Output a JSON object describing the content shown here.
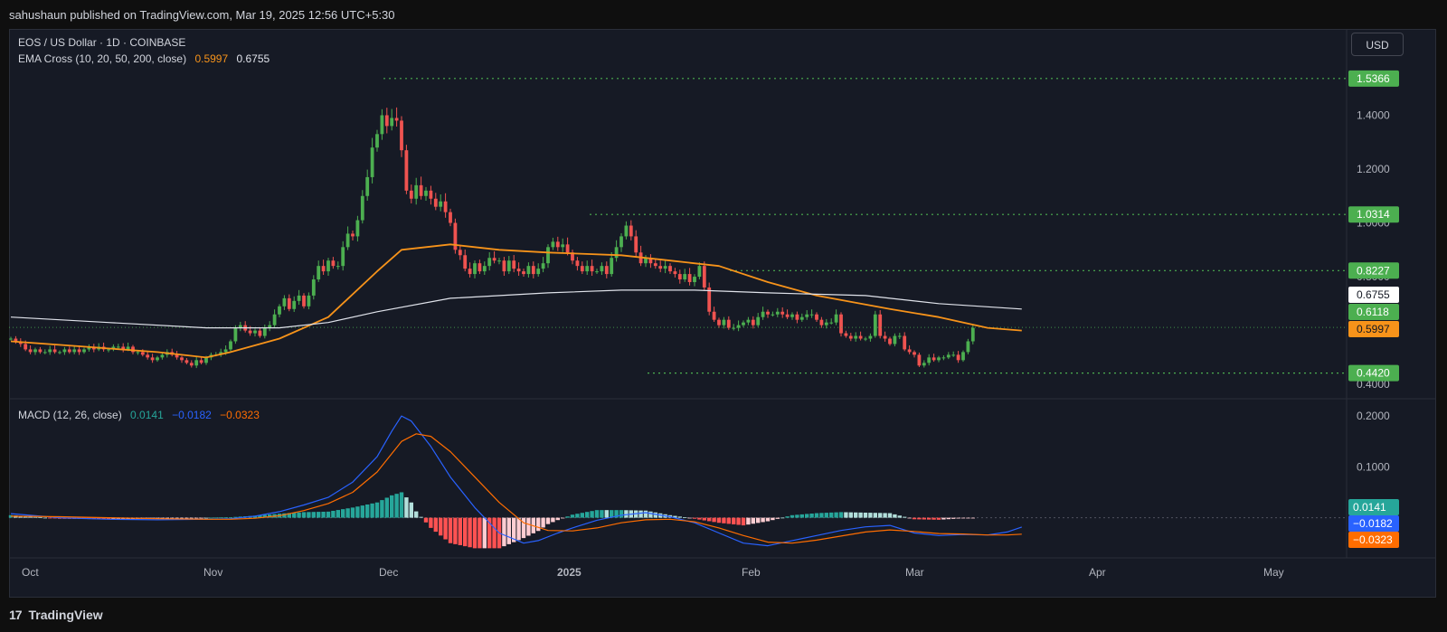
{
  "header": {
    "publisher_line": "sahushaun published on TradingView.com, Mar 19, 2025 12:56 UTC+5:30"
  },
  "legend": {
    "symbol": "EOS / US Dollar · 1D · COINBASE",
    "ema_label": "EMA Cross (10, 20, 50, 200, close)",
    "ema_fast_value": "0.5997",
    "ema_slow_value": "0.6755",
    "macd_label": "MACD (12, 26, close)",
    "macd_hist_value": "0.0141",
    "macd_line_value": "−0.0182",
    "macd_signal_value": "−0.0323"
  },
  "currency_button": "USD",
  "footer": {
    "brand": "TradingView",
    "logo_mark": "17"
  },
  "colors": {
    "background": "#161a25",
    "up": "#26a69a",
    "candle_up": "#4caf50",
    "candle_down": "#ef5350",
    "ema_fast": "#f7931a",
    "ema_slow": "#e0e3eb",
    "level": "#4caf50",
    "macd": "#2962ff",
    "signal": "#ff6d00",
    "hist_up_strong": "#26a69a",
    "hist_up_weak": "#b2dfdb",
    "hist_down_strong": "#ff5252",
    "hist_down_weak": "#ffcdd2"
  },
  "chart_data": [
    {
      "type": "candlestick",
      "x_axis": {
        "ticks": [
          "Oct",
          "Nov",
          "Dec",
          "2025",
          "Feb",
          "Mar",
          "Apr",
          "May"
        ]
      },
      "price_axis": {
        "ticks": [
          "1.4000",
          "1.2000",
          "1.0000",
          "0.8000",
          "0.6000",
          "0.4000"
        ],
        "tick_values": [
          1.4,
          1.2,
          1.0,
          0.8,
          0.6,
          0.4
        ],
        "range": [
          0.35,
          1.62
        ]
      },
      "horizontal_levels": [
        {
          "value": 1.5366,
          "label": "1.5366"
        },
        {
          "value": 1.0314,
          "label": "1.0314"
        },
        {
          "value": 0.8227,
          "label": "0.8227"
        },
        {
          "value": 0.442,
          "label": "0.4420"
        }
      ],
      "price_labels": [
        {
          "value": 0.6755,
          "label": "0.6755",
          "kind": "ema_slow"
        },
        {
          "value": 0.6118,
          "label": "0.6118",
          "kind": "last"
        },
        {
          "value": 0.5997,
          "label": "0.5997",
          "kind": "ema_fast"
        }
      ],
      "closes": [
        0.57,
        0.56,
        0.55,
        0.53,
        0.52,
        0.53,
        0.52,
        0.52,
        0.53,
        0.52,
        0.52,
        0.53,
        0.52,
        0.53,
        0.52,
        0.53,
        0.54,
        0.53,
        0.54,
        0.53,
        0.53,
        0.54,
        0.54,
        0.53,
        0.54,
        0.52,
        0.52,
        0.51,
        0.5,
        0.49,
        0.5,
        0.51,
        0.52,
        0.51,
        0.5,
        0.49,
        0.48,
        0.47,
        0.49,
        0.48,
        0.5,
        0.51,
        0.51,
        0.52,
        0.53,
        0.56,
        0.61,
        0.62,
        0.6,
        0.59,
        0.6,
        0.58,
        0.61,
        0.62,
        0.66,
        0.69,
        0.72,
        0.68,
        0.71,
        0.73,
        0.69,
        0.73,
        0.79,
        0.84,
        0.82,
        0.86,
        0.84,
        0.84,
        0.91,
        0.96,
        0.95,
        1.01,
        1.1,
        1.17,
        1.28,
        1.33,
        1.4,
        1.36,
        1.39,
        1.38,
        1.27,
        1.12,
        1.09,
        1.14,
        1.1,
        1.12,
        1.09,
        1.06,
        1.08,
        1.04,
        1.0,
        0.9,
        0.88,
        0.83,
        0.81,
        0.85,
        0.82,
        0.84,
        0.87,
        0.86,
        0.86,
        0.82,
        0.86,
        0.83,
        0.82,
        0.81,
        0.84,
        0.81,
        0.83,
        0.85,
        0.91,
        0.93,
        0.91,
        0.92,
        0.89,
        0.86,
        0.84,
        0.82,
        0.84,
        0.82,
        0.82,
        0.84,
        0.81,
        0.87,
        0.91,
        0.95,
        0.99,
        0.95,
        0.89,
        0.85,
        0.87,
        0.85,
        0.84,
        0.83,
        0.84,
        0.82,
        0.81,
        0.79,
        0.81,
        0.78,
        0.8,
        0.84,
        0.76,
        0.67,
        0.64,
        0.62,
        0.64,
        0.61,
        0.61,
        0.62,
        0.63,
        0.64,
        0.62,
        0.65,
        0.67,
        0.66,
        0.66,
        0.67,
        0.66,
        0.65,
        0.66,
        0.64,
        0.65,
        0.66,
        0.66,
        0.64,
        0.62,
        0.63,
        0.63,
        0.66,
        0.59,
        0.58,
        0.57,
        0.58,
        0.57,
        0.57,
        0.58,
        0.66,
        0.58,
        0.57,
        0.55,
        0.58,
        0.58,
        0.53,
        0.52,
        0.51,
        0.47,
        0.48,
        0.5,
        0.49,
        0.5,
        0.5,
        0.51,
        0.51,
        0.49,
        0.52,
        0.56,
        0.61
      ],
      "series": [
        {
          "name": "EMA 20",
          "points": [
            [
              0,
              0.56
            ],
            [
              15,
              0.54
            ],
            [
              30,
              0.52
            ],
            [
              40,
              0.5
            ],
            [
              45,
              0.52
            ],
            [
              55,
              0.57
            ],
            [
              65,
              0.65
            ],
            [
              75,
              0.82
            ],
            [
              80,
              0.9
            ],
            [
              90,
              0.92
            ],
            [
              100,
              0.9
            ],
            [
              110,
              0.89
            ],
            [
              125,
              0.88
            ],
            [
              135,
              0.86
            ],
            [
              145,
              0.84
            ],
            [
              155,
              0.78
            ],
            [
              165,
              0.73
            ],
            [
              180,
              0.68
            ],
            [
              190,
              0.65
            ],
            [
              200,
              0.61
            ],
            [
              207,
              0.6
            ]
          ]
        },
        {
          "name": "EMA 200",
          "points": [
            [
              0,
              0.65
            ],
            [
              20,
              0.63
            ],
            [
              40,
              0.61
            ],
            [
              55,
              0.61
            ],
            [
              65,
              0.63
            ],
            [
              75,
              0.67
            ],
            [
              90,
              0.72
            ],
            [
              110,
              0.74
            ],
            [
              125,
              0.75
            ],
            [
              140,
              0.75
            ],
            [
              155,
              0.74
            ],
            [
              175,
              0.73
            ],
            [
              190,
              0.7
            ],
            [
              207,
              0.68
            ]
          ]
        }
      ]
    },
    {
      "type": "macd",
      "y_axis": {
        "ticks": [
          "0.2000",
          "0.1000"
        ],
        "tick_values": [
          0.2,
          0.1
        ],
        "range": [
          -0.07,
          0.225
        ]
      },
      "value_labels": [
        {
          "value": 0.0141,
          "label": "0.0141",
          "kind": "histogram"
        },
        {
          "value": -0.0182,
          "label": "−0.0182",
          "kind": "macd"
        },
        {
          "value": -0.0323,
          "label": "−0.0323",
          "kind": "signal"
        }
      ],
      "series": [
        {
          "name": "MACD",
          "points": [
            [
              0,
              0.008
            ],
            [
              10,
              0.0
            ],
            [
              20,
              -0.003
            ],
            [
              30,
              -0.004
            ],
            [
              40,
              -0.003
            ],
            [
              45,
              -0.002
            ],
            [
              50,
              0.003
            ],
            [
              55,
              0.012
            ],
            [
              60,
              0.025
            ],
            [
              65,
              0.04
            ],
            [
              70,
              0.07
            ],
            [
              75,
              0.12
            ],
            [
              78,
              0.17
            ],
            [
              80,
              0.2
            ],
            [
              82,
              0.19
            ],
            [
              86,
              0.14
            ],
            [
              90,
              0.08
            ],
            [
              95,
              0.02
            ],
            [
              100,
              -0.03
            ],
            [
              105,
              -0.05
            ],
            [
              108,
              -0.045
            ],
            [
              112,
              -0.03
            ],
            [
              115,
              -0.02
            ],
            [
              120,
              -0.005
            ],
            [
              125,
              0.005
            ],
            [
              130,
              0.01
            ],
            [
              135,
              0.002
            ],
            [
              140,
              -0.01
            ],
            [
              145,
              -0.03
            ],
            [
              150,
              -0.05
            ],
            [
              155,
              -0.055
            ],
            [
              160,
              -0.045
            ],
            [
              165,
              -0.035
            ],
            [
              170,
              -0.025
            ],
            [
              175,
              -0.018
            ],
            [
              180,
              -0.015
            ],
            [
              185,
              -0.03
            ],
            [
              190,
              -0.035
            ],
            [
              195,
              -0.033
            ],
            [
              200,
              -0.034
            ],
            [
              204,
              -0.028
            ],
            [
              207,
              -0.0182
            ]
          ]
        },
        {
          "name": "Signal",
          "points": [
            [
              0,
              0.003
            ],
            [
              10,
              0.002
            ],
            [
              20,
              0.0
            ],
            [
              30,
              -0.002
            ],
            [
              40,
              -0.003
            ],
            [
              45,
              -0.003
            ],
            [
              50,
              -0.001
            ],
            [
              55,
              0.004
            ],
            [
              60,
              0.014
            ],
            [
              65,
              0.028
            ],
            [
              70,
              0.05
            ],
            [
              75,
              0.09
            ],
            [
              80,
              0.15
            ],
            [
              83,
              0.165
            ],
            [
              86,
              0.16
            ],
            [
              90,
              0.13
            ],
            [
              95,
              0.08
            ],
            [
              100,
              0.03
            ],
            [
              105,
              -0.01
            ],
            [
              110,
              -0.025
            ],
            [
              115,
              -0.026
            ],
            [
              120,
              -0.02
            ],
            [
              125,
              -0.01
            ],
            [
              130,
              -0.004
            ],
            [
              135,
              -0.003
            ],
            [
              140,
              -0.008
            ],
            [
              145,
              -0.02
            ],
            [
              150,
              -0.035
            ],
            [
              155,
              -0.048
            ],
            [
              160,
              -0.05
            ],
            [
              165,
              -0.044
            ],
            [
              170,
              -0.036
            ],
            [
              175,
              -0.028
            ],
            [
              180,
              -0.024
            ],
            [
              185,
              -0.027
            ],
            [
              190,
              -0.031
            ],
            [
              195,
              -0.032
            ],
            [
              200,
              -0.034
            ],
            [
              204,
              -0.034
            ],
            [
              207,
              -0.0323
            ]
          ]
        }
      ]
    }
  ]
}
